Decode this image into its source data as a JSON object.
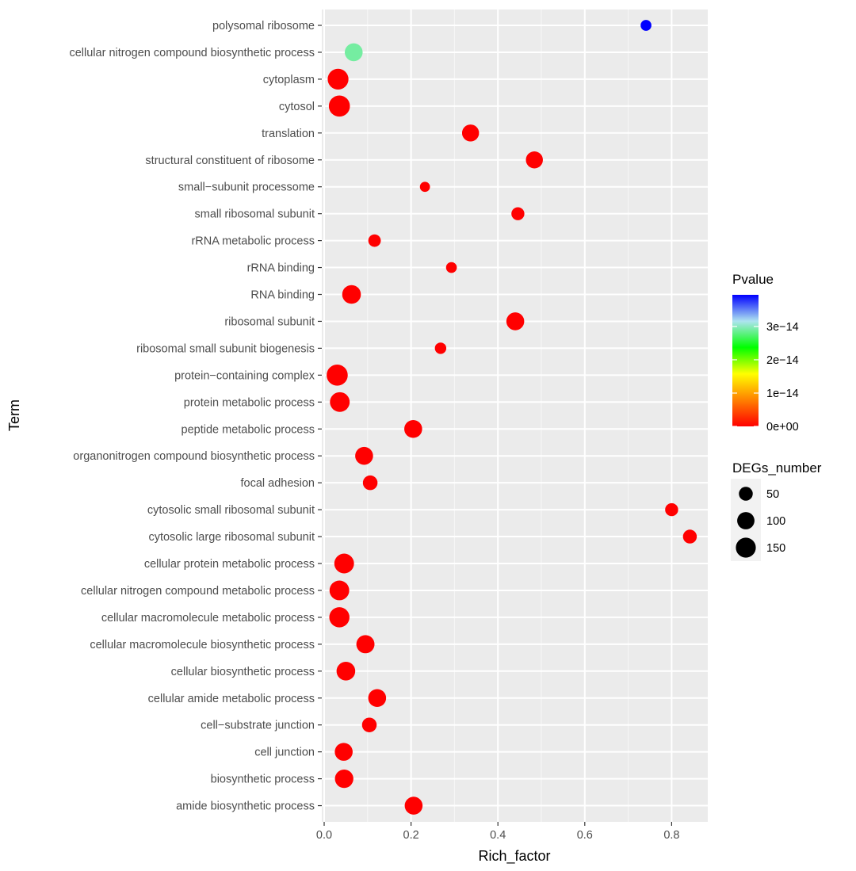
{
  "chart_data": {
    "type": "scatter",
    "xlabel": "Rich_factor",
    "ylabel": "Term",
    "xlim": [
      -0.01,
      0.88
    ],
    "x_ticks": [
      "0.0",
      "0.2",
      "0.4",
      "0.6",
      "0.8"
    ],
    "x_tick_values": [
      0.0,
      0.2,
      0.4,
      0.6,
      0.8
    ],
    "grid": true,
    "panel_background": "#ebebeb",
    "grid_color": "#ffffff",
    "points": [
      {
        "term": "polysomal ribosome",
        "x": 0.741,
        "degs": 20,
        "pvalue": 4e-14
      },
      {
        "term": "cellular nitrogen compound biosynthetic process",
        "x": 0.068,
        "degs": 110,
        "pvalue": 2.9e-14
      },
      {
        "term": "cytoplasm",
        "x": 0.032,
        "degs": 168,
        "pvalue": 0
      },
      {
        "term": "cytosol",
        "x": 0.035,
        "degs": 175,
        "pvalue": 0
      },
      {
        "term": "translation",
        "x": 0.337,
        "degs": 95,
        "pvalue": 0
      },
      {
        "term": "structural constituent of ribosome",
        "x": 0.484,
        "degs": 95,
        "pvalue": 0
      },
      {
        "term": "small−subunit processome",
        "x": 0.232,
        "degs": 15,
        "pvalue": 0
      },
      {
        "term": "small ribosomal subunit",
        "x": 0.446,
        "degs": 40,
        "pvalue": 0
      },
      {
        "term": "rRNA metabolic process",
        "x": 0.116,
        "degs": 35,
        "pvalue": 0
      },
      {
        "term": "rRNA binding",
        "x": 0.293,
        "degs": 20,
        "pvalue": 0
      },
      {
        "term": "RNA binding",
        "x": 0.063,
        "degs": 125,
        "pvalue": 0
      },
      {
        "term": "ribosomal subunit",
        "x": 0.44,
        "degs": 110,
        "pvalue": 0
      },
      {
        "term": "ribosomal small subunit biogenesis",
        "x": 0.268,
        "degs": 25,
        "pvalue": 0
      },
      {
        "term": "protein−containing complex",
        "x": 0.03,
        "degs": 175,
        "pvalue": 0
      },
      {
        "term": "protein metabolic process",
        "x": 0.036,
        "degs": 145,
        "pvalue": 0
      },
      {
        "term": "peptide metabolic process",
        "x": 0.205,
        "degs": 110,
        "pvalue": 0
      },
      {
        "term": "organonitrogen compound biosynthetic process",
        "x": 0.092,
        "degs": 110,
        "pvalue": 0
      },
      {
        "term": "focal adhesion",
        "x": 0.106,
        "degs": 60,
        "pvalue": 0
      },
      {
        "term": "cytosolic small ribosomal subunit",
        "x": 0.8,
        "degs": 40,
        "pvalue": 0
      },
      {
        "term": "cytosolic large ribosomal subunit",
        "x": 0.842,
        "degs": 50,
        "pvalue": 0
      },
      {
        "term": "cellular protein metabolic process",
        "x": 0.046,
        "degs": 145,
        "pvalue": 0
      },
      {
        "term": "cellular nitrogen compound metabolic process",
        "x": 0.035,
        "degs": 145,
        "pvalue": 0
      },
      {
        "term": "cellular macromolecule metabolic process",
        "x": 0.035,
        "degs": 155,
        "pvalue": 0
      },
      {
        "term": "cellular macromolecule biosynthetic process",
        "x": 0.095,
        "degs": 115,
        "pvalue": 0
      },
      {
        "term": "cellular biosynthetic process",
        "x": 0.05,
        "degs": 125,
        "pvalue": 0
      },
      {
        "term": "cellular amide metabolic process",
        "x": 0.122,
        "degs": 110,
        "pvalue": 0
      },
      {
        "term": "cell−substrate junction",
        "x": 0.104,
        "degs": 60,
        "pvalue": 0
      },
      {
        "term": "cell junction",
        "x": 0.045,
        "degs": 110,
        "pvalue": 0
      },
      {
        "term": "biosynthetic process",
        "x": 0.046,
        "degs": 120,
        "pvalue": 0
      },
      {
        "term": "amide biosynthetic process",
        "x": 0.206,
        "degs": 110,
        "pvalue": 0
      }
    ],
    "legend_color": {
      "title": "Pvalue",
      "labels": [
        "3e−14",
        "2e−14",
        "1e−14",
        "0e+00"
      ],
      "values": [
        3e-14,
        2e-14,
        1e-14,
        0
      ],
      "range": [
        0,
        3.95e-14
      ],
      "colors": [
        "#ff0000",
        "#ff8000",
        "#ffff00",
        "#00ff00",
        "#aee4f0",
        "#0000ff"
      ]
    },
    "legend_size": {
      "title": "DEGs_number",
      "labels": [
        "50",
        "100",
        "150"
      ],
      "values": [
        50,
        100,
        150
      ]
    }
  }
}
